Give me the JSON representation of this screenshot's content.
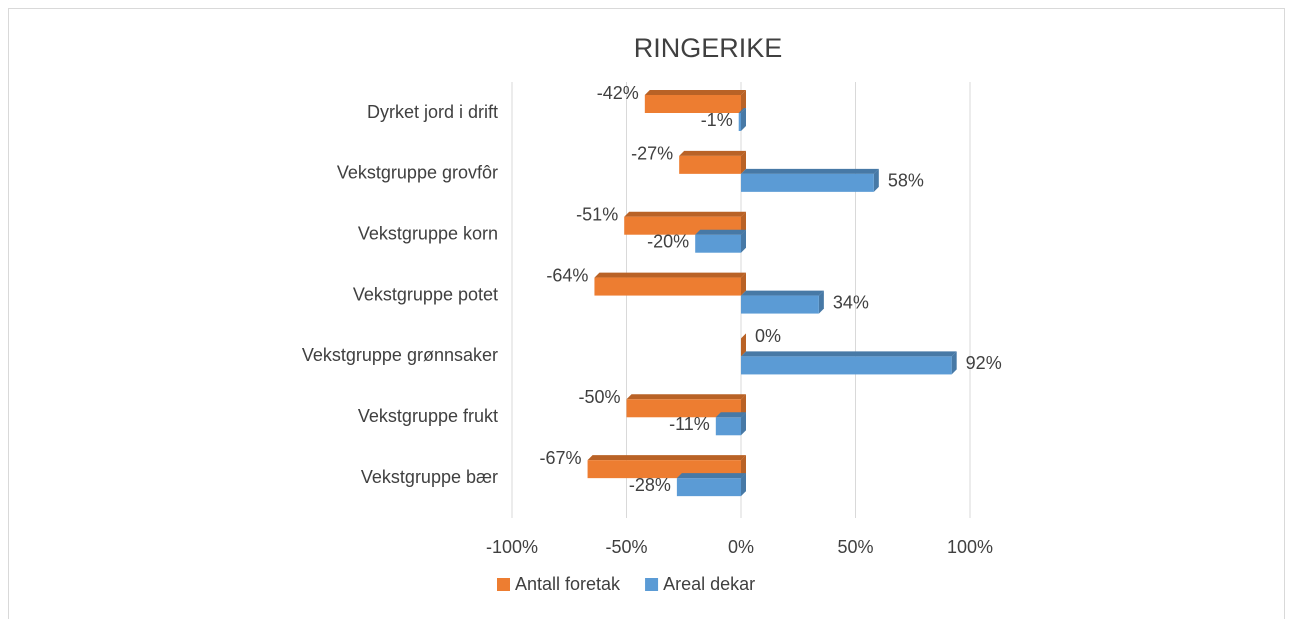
{
  "chart_data": {
    "type": "bar",
    "orientation": "horizontal",
    "title": "RINGERIKE",
    "categories": [
      "Dyrket jord i drift",
      "Vekstgruppe grovfôr",
      "Vekstgruppe korn",
      "Vekstgruppe potet",
      "Vekstgruppe grønnsaker",
      "Vekstgruppe frukt",
      "Vekstgruppe bær"
    ],
    "series": [
      {
        "name": "Antall foretak",
        "color": "#ED7D31",
        "values": [
          -42,
          -27,
          -51,
          -64,
          0,
          -50,
          -67
        ],
        "value_labels": [
          "-42%",
          "-27%",
          "-51%",
          "-64%",
          "0%",
          "-50%",
          "-67%"
        ]
      },
      {
        "name": "Areal dekar",
        "color": "#5B9BD5",
        "values": [
          -1,
          58,
          -20,
          34,
          92,
          -11,
          -28
        ],
        "value_labels": [
          "-1%",
          "58%",
          "-20%",
          "34%",
          "92%",
          "-11%",
          "-28%"
        ]
      }
    ],
    "xlim": [
      -100,
      100
    ],
    "xticks": [
      {
        "value": -100,
        "label": "-100%"
      },
      {
        "value": -50,
        "label": "-50%"
      },
      {
        "value": 0,
        "label": "0%"
      },
      {
        "value": 50,
        "label": "50%"
      },
      {
        "value": 100,
        "label": "100%"
      }
    ],
    "grid": true,
    "legend": "bottom"
  }
}
